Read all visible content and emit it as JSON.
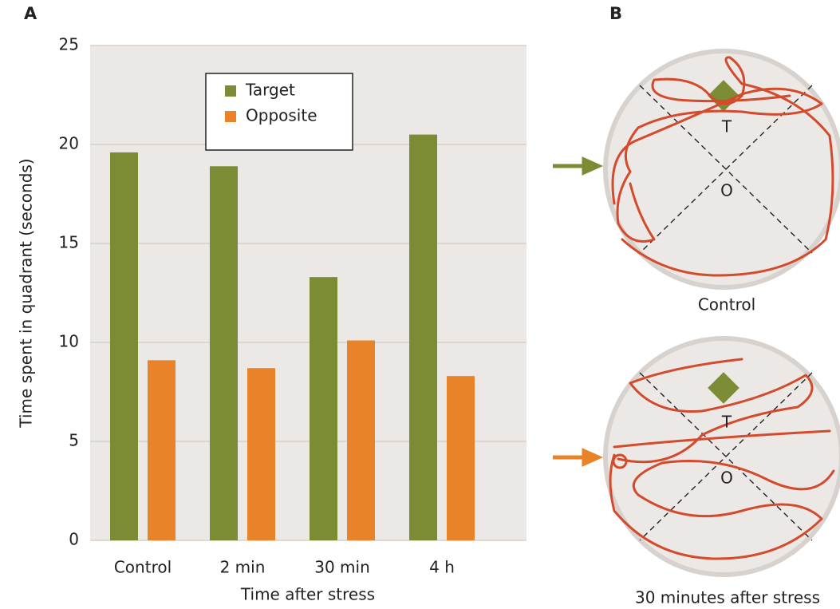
{
  "chart_data": {
    "type": "bar",
    "panel_label": "A",
    "xlabel": "Time after stress",
    "ylabel": "Time spent in quadrant (seconds)",
    "categories": [
      "Control",
      "2 min",
      "30 min",
      "4 h"
    ],
    "series": [
      {
        "name": "Target",
        "color": "#7b8c35",
        "values": [
          19.6,
          18.9,
          13.3,
          20.5
        ]
      },
      {
        "name": "Opposite",
        "color": "#e8832a",
        "values": [
          9.1,
          8.7,
          10.1,
          8.3
        ]
      }
    ],
    "ylim": [
      0,
      25
    ],
    "yticks": [
      0,
      5,
      10,
      15,
      20,
      25
    ],
    "grid": true
  },
  "panel_b": {
    "panel_label": "B",
    "maps": [
      {
        "caption": "Control",
        "target_label": "T",
        "opposite_label": "O"
      },
      {
        "caption": "30 minutes after stress",
        "target_label": "T",
        "opposite_label": "O"
      }
    ]
  }
}
